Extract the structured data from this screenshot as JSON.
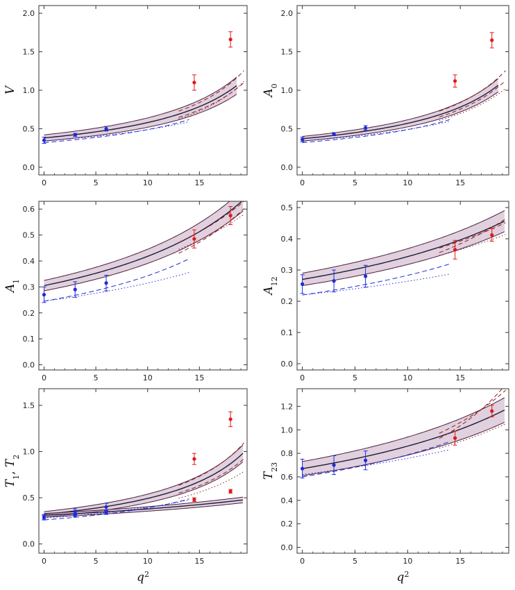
{
  "colors": {
    "band": "#c9a9c1",
    "band_edge": "#4a2040",
    "central": "#1c1c3a",
    "low_q2": "#1f2bd6",
    "high_q2": "#e01818",
    "high_q2_curve": "#8a1c1c",
    "frame": "#333333"
  },
  "chart_data": [
    {
      "type": "line",
      "ylabel": "V",
      "ylabel_sub": "",
      "xlabel": "",
      "xlim": [
        -0.5,
        19.6
      ],
      "ylim": [
        -0.1,
        2.1
      ],
      "xticks": [
        "0",
        "5",
        "10",
        "15"
      ],
      "yticks": [
        "0.0",
        "0.5",
        "1.0",
        "1.5",
        "2.0"
      ],
      "band": {
        "pole": 29.0,
        "center0": 0.38,
        "halfwidth0": 0.04,
        "xmax": 18.6
      },
      "blue_points": [
        {
          "x": 0,
          "y": 0.35,
          "err": 0.04
        },
        {
          "x": 3,
          "y": 0.42,
          "err": 0.02
        },
        {
          "x": 6,
          "y": 0.5,
          "err": 0.03
        }
      ],
      "red_points": [
        {
          "x": 14.5,
          "y": 1.1,
          "err": 0.1
        },
        {
          "x": 18,
          "y": 1.66,
          "err": 0.1
        }
      ],
      "blue_dashed": {
        "f0": 0.32,
        "pole": 29.0
      },
      "blue_dotted": {
        "f0": 0.34,
        "pole": 33.0
      },
      "red_dashed": [
        {
          "f0": 0.39,
          "pole": 28.0
        },
        {
          "f0": 0.35,
          "pole": 28.3
        }
      ],
      "red_dotted": {
        "f0": 0.33,
        "pole": 27.4
      }
    },
    {
      "type": "line",
      "ylabel": "A",
      "ylabel_sub": "0",
      "xlabel": "",
      "xlim": [
        -0.5,
        19.6
      ],
      "ylim": [
        -0.1,
        2.1
      ],
      "xticks": [
        "0",
        "5",
        "10",
        "15"
      ],
      "yticks": [
        "0.0",
        "0.5",
        "1.0",
        "1.5",
        "2.0"
      ],
      "band": {
        "pole": 28.5,
        "center0": 0.37,
        "halfwidth0": 0.03,
        "xmax": 18.6
      },
      "blue_points": [
        {
          "x": 0,
          "y": 0.36,
          "err": 0.03
        },
        {
          "x": 3,
          "y": 0.43,
          "err": 0.02
        },
        {
          "x": 6,
          "y": 0.51,
          "err": 0.03
        }
      ],
      "red_points": [
        {
          "x": 14.5,
          "y": 1.12,
          "err": 0.08
        },
        {
          "x": 18,
          "y": 1.65,
          "err": 0.1
        }
      ],
      "blue_dashed": {
        "f0": 0.32,
        "pole": 29.0
      },
      "blue_dotted": {
        "f0": 0.34,
        "pole": 32.5
      },
      "red_dashed": [
        {
          "f0": 0.39,
          "pole": 28.0
        },
        {
          "f0": 0.35,
          "pole": 28.0
        }
      ],
      "red_dotted": {
        "f0": 0.33,
        "pole": 28.5
      }
    },
    {
      "type": "line",
      "ylabel": "A",
      "ylabel_sub": "1",
      "xlabel": "",
      "xlim": [
        -0.5,
        19.6
      ],
      "ylim": [
        -0.02,
        0.63
      ],
      "xticks": [
        "0",
        "5",
        "10",
        "15"
      ],
      "yticks": [
        "0.0",
        "0.1",
        "0.2",
        "0.3",
        "0.4",
        "0.5",
        "0.6"
      ],
      "band": {
        "pole": 37.0,
        "center0": 0.305,
        "halfwidth0": 0.02,
        "xmax": 19.2
      },
      "blue_points": [
        {
          "x": 0,
          "y": 0.27,
          "err": 0.03
        },
        {
          "x": 3,
          "y": 0.29,
          "err": 0.03
        },
        {
          "x": 6,
          "y": 0.315,
          "err": 0.03
        }
      ],
      "red_points": [
        {
          "x": 14.5,
          "y": 0.485,
          "err": 0.035
        },
        {
          "x": 18,
          "y": 0.575,
          "err": 0.035
        }
      ],
      "blue_dashed": {
        "f0": 0.245,
        "pole": 35.0
      },
      "blue_dotted": {
        "f0": 0.245,
        "pole": 45.0
      },
      "red_dashed": [
        {
          "f0": 0.27,
          "pole": 35.0
        },
        {
          "f0": 0.31,
          "pole": 38.0
        }
      ],
      "red_dotted": {
        "f0": 0.3,
        "pole": 40.0
      }
    },
    {
      "type": "line",
      "ylabel": "A",
      "ylabel_sub": "12",
      "xlabel": "",
      "xlim": [
        -0.5,
        19.6
      ],
      "ylim": [
        -0.02,
        0.52
      ],
      "xticks": [
        "0",
        "5",
        "10",
        "15"
      ],
      "yticks": [
        "0.0",
        "0.1",
        "0.2",
        "0.3",
        "0.4",
        "0.5"
      ],
      "band": {
        "pole": 47.0,
        "center0": 0.27,
        "halfwidth0": 0.02,
        "xmax": 19.2
      },
      "blue_points": [
        {
          "x": 0,
          "y": 0.255,
          "err": 0.03
        },
        {
          "x": 3,
          "y": 0.265,
          "err": 0.035
        },
        {
          "x": 6,
          "y": 0.28,
          "err": 0.035
        }
      ],
      "red_points": [
        {
          "x": 14.5,
          "y": 0.365,
          "err": 0.03
        },
        {
          "x": 18,
          "y": 0.412,
          "err": 0.02
        }
      ],
      "blue_dashed": {
        "f0": 0.22,
        "pole": 45.0
      },
      "blue_dotted": {
        "f0": 0.22,
        "pole": 60.0
      },
      "red_dashed": [
        {
          "f0": 0.24,
          "pole": 40.0
        },
        {
          "f0": 0.27,
          "pole": 48.0
        }
      ],
      "red_dotted": {
        "f0": 0.26,
        "pole": 52.0
      }
    },
    {
      "type": "line",
      "ylabel": "T",
      "ylabel_sub": "1",
      "ylabel_b": "T",
      "ylabel_b_sub": "2",
      "xlabel": "q",
      "xlabel_sup": "2",
      "xlim": [
        -0.5,
        19.6
      ],
      "ylim": [
        -0.1,
        1.68
      ],
      "xticks": [
        "0",
        "5",
        "10",
        "15"
      ],
      "yticks": [
        "0.0",
        "0.5",
        "1.0",
        "1.5"
      ],
      "band": {
        "pole": 28.5,
        "center0": 0.32,
        "halfwidth0": 0.03,
        "xmax": 19.2
      },
      "band2": {
        "pole": 55.0,
        "center0": 0.31,
        "halfwidth0": 0.02,
        "xmax": 19.2
      },
      "blue_points": [
        {
          "x": 0,
          "y": 0.29,
          "err": 0.03
        },
        {
          "x": 3,
          "y": 0.35,
          "err": 0.03
        },
        {
          "x": 6,
          "y": 0.4,
          "err": 0.04
        }
      ],
      "blue_points_b": [
        {
          "x": 0,
          "y": 0.29,
          "err": 0.02
        },
        {
          "x": 3,
          "y": 0.31,
          "err": 0.02
        },
        {
          "x": 6,
          "y": 0.34,
          "err": 0.02
        }
      ],
      "red_points": [
        {
          "x": 14.5,
          "y": 0.92,
          "err": 0.06
        },
        {
          "x": 18,
          "y": 1.35,
          "err": 0.08
        }
      ],
      "red_points_b": [
        {
          "x": 14.5,
          "y": 0.48,
          "err": 0.02
        },
        {
          "x": 18,
          "y": 0.57,
          "err": 0.02
        }
      ],
      "blue_dashed": {
        "f0": 0.26,
        "pole": 30.0
      },
      "blue_dotted": {
        "f0": 0.28,
        "pole": 34.0
      },
      "red_dashed": [
        {
          "f0": 0.34,
          "pole": 28.0
        },
        {
          "f0": 0.3,
          "pole": 28.6
        }
      ],
      "red_dotted": {
        "f0": 0.28,
        "pole": 30.0
      }
    },
    {
      "type": "line",
      "ylabel": "T",
      "ylabel_sub": "23",
      "xlabel": "q",
      "xlabel_sup": "2",
      "xlim": [
        -0.5,
        19.6
      ],
      "ylim": [
        -0.05,
        1.35
      ],
      "xticks": [
        "0",
        "5",
        "10",
        "15"
      ],
      "yticks": [
        "0.0",
        "0.2",
        "0.4",
        "0.6",
        "0.8",
        "1.0",
        "1.2"
      ],
      "band": {
        "pole": 45.0,
        "center0": 0.67,
        "halfwidth0": 0.06,
        "xmax": 19.2
      },
      "blue_points": [
        {
          "x": 0,
          "y": 0.67,
          "err": 0.08
        },
        {
          "x": 3,
          "y": 0.7,
          "err": 0.08
        },
        {
          "x": 6,
          "y": 0.74,
          "err": 0.08
        }
      ],
      "red_points": [
        {
          "x": 14.5,
          "y": 0.93,
          "err": 0.06
        },
        {
          "x": 18,
          "y": 1.16,
          "err": 0.05
        }
      ],
      "blue_dashed": {
        "f0": 0.6,
        "pole": 42.0
      },
      "blue_dotted": {
        "f0": 0.62,
        "pole": 55.0
      },
      "red_dashed": [
        {
          "f0": 0.55,
          "pole": 32.0
        },
        {
          "f0": 0.62,
          "pole": 36.0
        }
      ],
      "red_dotted": {
        "f0": 0.6,
        "pole": 45.0
      }
    }
  ]
}
